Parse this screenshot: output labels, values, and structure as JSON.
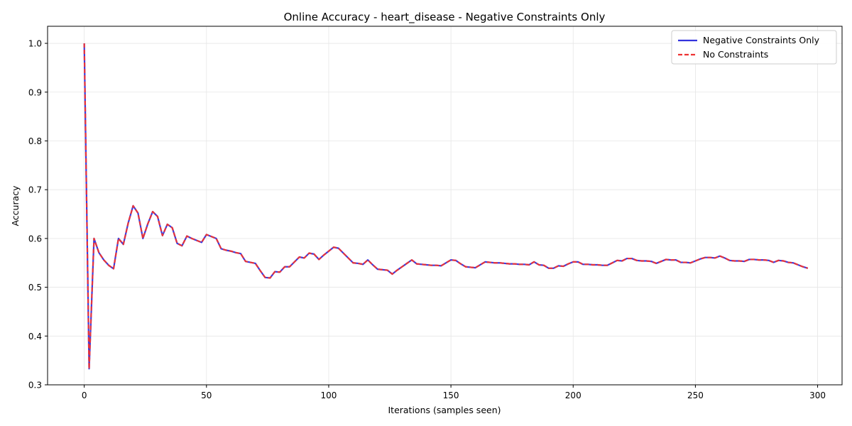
{
  "chart_data": {
    "type": "line",
    "title": "Online Accuracy - heart_disease - Negative Constraints Only",
    "xlabel": "Iterations (samples seen)",
    "ylabel": "Accuracy",
    "xlim": [
      -15,
      310
    ],
    "ylim": [
      0.3,
      1.035
    ],
    "xticks": [
      0,
      50,
      100,
      150,
      200,
      250,
      300
    ],
    "yticks": [
      0.3,
      0.4,
      0.5,
      0.6,
      0.7,
      0.8,
      0.9,
      1.0
    ],
    "xtick_labels": [
      "0",
      "50",
      "100",
      "150",
      "200",
      "250",
      "300"
    ],
    "ytick_labels": [
      "0.3",
      "0.4",
      "0.5",
      "0.6",
      "0.7",
      "0.8",
      "0.9",
      "1.0"
    ],
    "grid": true,
    "legend_position": "top-right",
    "x": [
      0,
      2,
      4,
      6,
      8,
      10,
      12,
      14,
      16,
      18,
      20,
      22,
      24,
      26,
      28,
      30,
      32,
      34,
      36,
      38,
      40,
      42,
      44,
      46,
      48,
      50,
      52,
      54,
      56,
      58,
      60,
      62,
      64,
      66,
      68,
      70,
      72,
      74,
      76,
      78,
      80,
      82,
      84,
      86,
      88,
      90,
      92,
      94,
      96,
      98,
      100,
      102,
      104,
      106,
      108,
      110,
      112,
      114,
      116,
      118,
      120,
      122,
      124,
      126,
      128,
      130,
      132,
      134,
      136,
      138,
      140,
      142,
      144,
      146,
      148,
      150,
      152,
      154,
      156,
      158,
      160,
      162,
      164,
      166,
      168,
      170,
      172,
      174,
      176,
      178,
      180,
      182,
      184,
      186,
      188,
      190,
      192,
      194,
      196,
      198,
      200,
      202,
      204,
      206,
      208,
      210,
      212,
      214,
      216,
      218,
      220,
      222,
      224,
      226,
      228,
      230,
      232,
      234,
      236,
      238,
      240,
      242,
      244,
      246,
      248,
      250,
      252,
      254,
      256,
      258,
      260,
      262,
      264,
      266,
      268,
      270,
      272,
      274,
      276,
      278,
      280,
      282,
      284,
      286,
      288,
      290,
      292,
      294,
      296
    ],
    "series": [
      {
        "name": "Negative Constraints Only",
        "color": "#3333dd",
        "style": "solid",
        "values": [
          1.0,
          0.333,
          0.6,
          0.571,
          0.556,
          0.545,
          0.538,
          0.6,
          0.588,
          0.632,
          0.667,
          0.652,
          0.6,
          0.63,
          0.655,
          0.645,
          0.606,
          0.629,
          0.622,
          0.59,
          0.585,
          0.605,
          0.6,
          0.596,
          0.592,
          0.608,
          0.604,
          0.6,
          0.579,
          0.576,
          0.574,
          0.571,
          0.569,
          0.553,
          0.551,
          0.549,
          0.534,
          0.52,
          0.519,
          0.532,
          0.531,
          0.542,
          0.542,
          0.552,
          0.562,
          0.56,
          0.57,
          0.568,
          0.557,
          0.566,
          0.574,
          0.582,
          0.58,
          0.57,
          0.56,
          0.55,
          0.549,
          0.547,
          0.556,
          0.546,
          0.537,
          0.536,
          0.535,
          0.527,
          0.535,
          0.542,
          0.549,
          0.556,
          0.548,
          0.547,
          0.546,
          0.545,
          0.545,
          0.544,
          0.55,
          0.556,
          0.555,
          0.548,
          0.542,
          0.541,
          0.54,
          0.546,
          0.552,
          0.551,
          0.55,
          0.55,
          0.549,
          0.548,
          0.548,
          0.547,
          0.547,
          0.546,
          0.552,
          0.546,
          0.545,
          0.539,
          0.539,
          0.544,
          0.543,
          0.548,
          0.552,
          0.552,
          0.547,
          0.547,
          0.546,
          0.546,
          0.545,
          0.545,
          0.55,
          0.555,
          0.554,
          0.559,
          0.559,
          0.555,
          0.554,
          0.554,
          0.553,
          0.549,
          0.553,
          0.557,
          0.556,
          0.556,
          0.551,
          0.551,
          0.55,
          0.554,
          0.558,
          0.561,
          0.561,
          0.56,
          0.564,
          0.56,
          0.555,
          0.554,
          0.554,
          0.553,
          0.557,
          0.557,
          0.556,
          0.556,
          0.555,
          0.551,
          0.555,
          0.554,
          0.551,
          0.55,
          0.546,
          0.542,
          0.539
        ]
      },
      {
        "name": "No Constraints",
        "color": "#ee3333",
        "style": "dashed",
        "values": [
          1.0,
          0.333,
          0.6,
          0.571,
          0.556,
          0.545,
          0.538,
          0.6,
          0.588,
          0.632,
          0.667,
          0.652,
          0.6,
          0.63,
          0.655,
          0.645,
          0.606,
          0.629,
          0.622,
          0.59,
          0.585,
          0.605,
          0.6,
          0.596,
          0.592,
          0.608,
          0.604,
          0.6,
          0.579,
          0.576,
          0.574,
          0.571,
          0.569,
          0.553,
          0.551,
          0.549,
          0.534,
          0.52,
          0.519,
          0.532,
          0.531,
          0.542,
          0.542,
          0.552,
          0.562,
          0.56,
          0.57,
          0.568,
          0.557,
          0.566,
          0.574,
          0.582,
          0.58,
          0.57,
          0.56,
          0.55,
          0.549,
          0.547,
          0.556,
          0.546,
          0.537,
          0.536,
          0.535,
          0.527,
          0.535,
          0.542,
          0.549,
          0.556,
          0.548,
          0.547,
          0.546,
          0.545,
          0.545,
          0.544,
          0.55,
          0.556,
          0.555,
          0.548,
          0.542,
          0.541,
          0.54,
          0.546,
          0.552,
          0.551,
          0.55,
          0.55,
          0.549,
          0.548,
          0.548,
          0.547,
          0.547,
          0.546,
          0.552,
          0.546,
          0.545,
          0.539,
          0.539,
          0.544,
          0.543,
          0.548,
          0.552,
          0.552,
          0.547,
          0.547,
          0.546,
          0.546,
          0.545,
          0.545,
          0.55,
          0.555,
          0.554,
          0.559,
          0.559,
          0.555,
          0.554,
          0.554,
          0.553,
          0.549,
          0.553,
          0.557,
          0.556,
          0.556,
          0.551,
          0.551,
          0.55,
          0.554,
          0.558,
          0.561,
          0.561,
          0.56,
          0.564,
          0.56,
          0.555,
          0.554,
          0.554,
          0.553,
          0.557,
          0.557,
          0.556,
          0.556,
          0.555,
          0.551,
          0.555,
          0.554,
          0.551,
          0.55,
          0.546,
          0.542,
          0.539
        ]
      }
    ]
  }
}
